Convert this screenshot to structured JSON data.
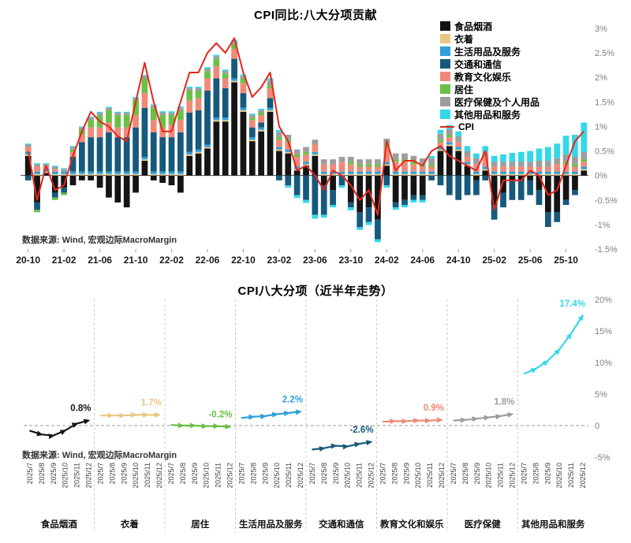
{
  "page": {
    "background": "#ffffff"
  },
  "chart_data": [
    {
      "type": "stacked-bar-line",
      "title": "CPI同比:八大分项贡献",
      "source": "数据来源: Wind, 宏观边际MacroMargin",
      "legend_position": "top-right",
      "grid": false,
      "ylim": [
        -1.5,
        3
      ],
      "y_ticks": [
        3,
        2.5,
        2,
        1.5,
        1,
        0.5,
        0,
        -0.5,
        -1,
        -1.5
      ],
      "y_tick_labels": [
        "3%",
        "2.5%",
        "2%",
        "1.5%",
        "1%",
        "0.5%",
        "0%",
        "-0.5%",
        "-1%",
        "-1.5%"
      ],
      "x_tick_every": 4,
      "months": [
        "20-10",
        "20-11",
        "20-12",
        "21-01",
        "21-02",
        "21-03",
        "21-04",
        "21-05",
        "21-06",
        "21-07",
        "21-08",
        "21-09",
        "21-10",
        "21-11",
        "21-12",
        "22-01",
        "22-02",
        "22-03",
        "22-04",
        "22-05",
        "22-06",
        "22-07",
        "22-08",
        "22-09",
        "22-10",
        "22-11",
        "22-12",
        "23-01",
        "23-02",
        "23-03",
        "23-04",
        "23-05",
        "23-06",
        "23-07",
        "23-08",
        "23-09",
        "23-10",
        "23-11",
        "23-12",
        "24-01",
        "24-02",
        "24-03",
        "24-04",
        "24-05",
        "24-06",
        "24-07",
        "24-08",
        "24-09",
        "24-10",
        "24-11",
        "24-12",
        "25-01",
        "25-02",
        "25-03",
        "25-04",
        "25-05",
        "25-06",
        "25-07",
        "25-08",
        "25-09",
        "25-10",
        "25-11",
        "25-12"
      ],
      "series": [
        {
          "name": "食品烟酒",
          "color": "#141414",
          "values": [
            0.4,
            -0.55,
            0.05,
            -0.35,
            -0.25,
            -0.2,
            -0.1,
            -0.1,
            -0.25,
            -0.45,
            -0.55,
            -0.65,
            -0.35,
            0.3,
            -0.1,
            -0.15,
            -0.2,
            -0.35,
            0.4,
            0.45,
            0.55,
            1.1,
            1.1,
            1.9,
            1.3,
            0.7,
            0.9,
            1.3,
            0.5,
            0.45,
            0.1,
            0.2,
            0.4,
            -0.2,
            -0.3,
            0.0,
            -0.55,
            -0.75,
            -0.65,
            -0.9,
            0.2,
            -0.55,
            -0.5,
            -0.4,
            -0.4,
            0.0,
            0.5,
            0.6,
            0.5,
            0.2,
            -0.1,
            0.1,
            -0.6,
            -0.35,
            -0.1,
            -0.1,
            -0.1,
            -0.3,
            -0.75,
            -0.75,
            -0.5,
            -0.3,
            0.1
          ]
        },
        {
          "name": "衣着",
          "color": "#e9c783",
          "values": [
            0.03,
            0.03,
            0.03,
            0.03,
            0.03,
            0.03,
            0.03,
            0.03,
            0.03,
            0.03,
            0.03,
            0.03,
            0.03,
            0.03,
            0.03,
            0.03,
            0.03,
            0.03,
            0.03,
            0.03,
            0.03,
            0.03,
            0.03,
            0.03,
            0.03,
            0.03,
            0.03,
            0.03,
            0.03,
            0.03,
            0.03,
            0.03,
            0.03,
            0.03,
            0.03,
            0.03,
            0.03,
            0.03,
            0.03,
            0.03,
            0.03,
            0.03,
            0.03,
            0.03,
            0.03,
            0.03,
            0.03,
            0.03,
            0.03,
            0.03,
            0.03,
            0.03,
            0.03,
            0.03,
            0.03,
            0.03,
            0.03,
            0.03,
            0.03,
            0.03,
            0.03,
            0.03,
            0.03
          ]
        },
        {
          "name": "生活用品及服务",
          "color": "#2e9fd9",
          "values": [
            0.05,
            0.05,
            0.05,
            0.05,
            0.05,
            0.05,
            0.05,
            0.05,
            0.05,
            0.05,
            0.05,
            0.05,
            0.05,
            0.05,
            0.05,
            0.05,
            0.05,
            0.05,
            0.05,
            0.05,
            0.05,
            0.05,
            0.05,
            0.05,
            0.05,
            0.05,
            0.05,
            0.05,
            0.05,
            0.05,
            0.05,
            0.05,
            0.05,
            0.05,
            0.05,
            0.05,
            0.05,
            0.05,
            0.05,
            0.05,
            0.05,
            0.05,
            0.05,
            0.05,
            0.05,
            0.05,
            0.05,
            0.05,
            0.05,
            0.05,
            0.05,
            0.05,
            0.05,
            0.05,
            0.05,
            0.05,
            0.05,
            0.05,
            0.05,
            0.05,
            0.05,
            0.05,
            0.05
          ]
        },
        {
          "name": "交通和通信",
          "color": "#16597c",
          "values": [
            -0.1,
            -0.15,
            0.0,
            -0.1,
            -0.1,
            0.3,
            0.6,
            0.7,
            0.7,
            0.8,
            0.7,
            0.7,
            0.9,
            1.0,
            0.8,
            0.7,
            0.7,
            0.8,
            0.8,
            0.8,
            1.1,
            0.8,
            0.6,
            0.4,
            0.3,
            0.2,
            0.1,
            0.2,
            -0.1,
            -0.2,
            -0.4,
            -0.5,
            -0.8,
            -0.6,
            -0.3,
            -0.2,
            -0.1,
            -0.3,
            -0.3,
            -0.4,
            -0.2,
            -0.1,
            -0.1,
            -0.1,
            -0.1,
            -0.1,
            -0.2,
            -0.4,
            -0.5,
            -0.4,
            -0.3,
            -0.1,
            -0.3,
            -0.3,
            -0.4,
            -0.4,
            -0.3,
            -0.3,
            -0.3,
            -0.2,
            -0.1,
            -0.1,
            0.0
          ]
        },
        {
          "name": "教育文化娱乐",
          "color": "#ef8a78",
          "values": [
            0.1,
            0.1,
            0.05,
            0.05,
            0.0,
            0.1,
            0.15,
            0.2,
            0.2,
            0.2,
            0.2,
            0.2,
            0.25,
            0.3,
            0.25,
            0.2,
            0.25,
            0.25,
            0.25,
            0.25,
            0.25,
            0.25,
            0.2,
            0.2,
            0.2,
            0.15,
            0.15,
            0.2,
            0.15,
            0.15,
            0.2,
            0.15,
            0.15,
            0.15,
            0.15,
            0.2,
            0.15,
            0.1,
            0.1,
            0.1,
            0.3,
            0.2,
            0.2,
            0.15,
            0.1,
            0.1,
            0.1,
            0.1,
            0.1,
            0.1,
            0.15,
            0.2,
            0.1,
            0.1,
            0.1,
            0.1,
            0.1,
            0.1,
            0.1,
            0.15,
            0.15,
            0.1,
            0.1
          ]
        },
        {
          "name": "居住",
          "color": "#6abf45",
          "values": [
            0.0,
            -0.05,
            0.0,
            -0.05,
            -0.05,
            0.05,
            0.1,
            0.15,
            0.25,
            0.25,
            0.25,
            0.25,
            0.3,
            0.3,
            0.25,
            0.25,
            0.2,
            0.2,
            0.2,
            0.15,
            0.15,
            0.15,
            0.1,
            0.1,
            0.1,
            0.05,
            0.05,
            0.05,
            0.05,
            0.05,
            0.05,
            0.05,
            0.0,
            0.0,
            0.0,
            0.0,
            0.05,
            0.05,
            0.05,
            0.05,
            0.05,
            0.05,
            0.05,
            0.05,
            0.05,
            0.05,
            0.05,
            0.05,
            0.0,
            0.0,
            0.0,
            0.0,
            0.0,
            0.0,
            0.0,
            0.0,
            0.0,
            0.0,
            0.0,
            0.0,
            0.05,
            0.05,
            0.05
          ]
        },
        {
          "name": "医疗保健及个人用品",
          "color": "#9d9d9d",
          "values": [
            0.05,
            0.05,
            0.05,
            0.05,
            0.05,
            0.05,
            0.05,
            0.05,
            0.05,
            0.05,
            0.05,
            0.05,
            0.05,
            0.05,
            0.05,
            0.05,
            0.05,
            0.05,
            0.05,
            0.05,
            0.05,
            0.05,
            0.05,
            0.05,
            0.05,
            0.05,
            0.05,
            0.1,
            0.1,
            0.1,
            0.1,
            0.1,
            0.1,
            0.1,
            0.1,
            0.1,
            0.1,
            0.1,
            0.1,
            0.1,
            0.12,
            0.12,
            0.12,
            0.12,
            0.12,
            0.12,
            0.12,
            0.12,
            0.12,
            0.12,
            0.12,
            0.1,
            0.1,
            0.1,
            0.1,
            0.1,
            0.1,
            0.12,
            0.12,
            0.12,
            0.15,
            0.15,
            0.15
          ]
        },
        {
          "name": "其他用品和服务",
          "color": "#33d8e8",
          "values": [
            0.02,
            0.02,
            0.02,
            0.02,
            0.02,
            0.02,
            0.02,
            0.02,
            0.02,
            0.02,
            0.02,
            0.02,
            0.02,
            0.02,
            0.02,
            0.03,
            0.03,
            0.03,
            0.03,
            0.03,
            0.03,
            0.03,
            0.03,
            0.03,
            0.03,
            0.03,
            0.03,
            0.05,
            0.05,
            -0.05,
            -0.06,
            -0.06,
            -0.08,
            -0.06,
            -0.05,
            -0.05,
            -0.06,
            -0.06,
            -0.06,
            -0.06,
            -0.05,
            -0.05,
            -0.05,
            -0.05,
            -0.05,
            0.05,
            0.08,
            0.08,
            0.1,
            0.1,
            0.1,
            0.12,
            0.12,
            0.15,
            0.18,
            0.2,
            0.22,
            0.25,
            0.28,
            0.3,
            0.38,
            0.45,
            0.6
          ]
        }
      ],
      "line": {
        "name": "CPI",
        "color": "#e4261c",
        "values": [
          0.5,
          -0.5,
          0.2,
          -0.3,
          -0.2,
          0.4,
          0.9,
          1.3,
          1.1,
          1.0,
          0.8,
          0.7,
          1.5,
          2.3,
          1.5,
          0.9,
          0.9,
          1.5,
          2.1,
          2.1,
          2.5,
          2.7,
          2.5,
          2.8,
          2.1,
          1.6,
          1.8,
          2.1,
          1.0,
          0.7,
          0.1,
          0.2,
          0.0,
          -0.3,
          0.1,
          0.0,
          -0.2,
          -0.5,
          -0.3,
          -0.8,
          0.7,
          0.1,
          0.3,
          0.3,
          0.2,
          0.5,
          0.6,
          0.4,
          0.3,
          0.2,
          0.1,
          0.5,
          -0.7,
          -0.1,
          -0.1,
          -0.1,
          0.1,
          0.0,
          -0.4,
          -0.3,
          0.2,
          0.7,
          0.9
        ]
      }
    },
    {
      "type": "small-multiples-line",
      "title": "CPI八大分项（近半年走势）",
      "source": "数据来源: Wind, 宏观边际MacroMargin",
      "ylim": [
        -5,
        20
      ],
      "y_ticks": [
        20,
        15,
        10,
        5,
        0,
        -5
      ],
      "y_tick_labels": [
        "20%",
        "15%",
        "10%",
        "5%",
        "0",
        "-5%"
      ],
      "zero_line": "dashed",
      "x_labels": [
        "2025/7",
        "2025/8",
        "2025/9",
        "2025/10",
        "2025/11",
        "2025/12"
      ],
      "panels": [
        {
          "name": "食品烟酒",
          "color": "#141414",
          "end_label": "0.8%",
          "values": [
            -0.8,
            -1.4,
            -1.6,
            -0.8,
            0.3,
            0.8
          ]
        },
        {
          "name": "衣着",
          "color": "#e9c783",
          "end_label": "1.7%",
          "values": [
            1.6,
            1.6,
            1.6,
            1.7,
            1.7,
            1.7
          ]
        },
        {
          "name": "居住",
          "color": "#6abf45",
          "end_label": "-0.2%",
          "values": [
            0.1,
            0.0,
            0.0,
            -0.1,
            -0.1,
            -0.2
          ]
        },
        {
          "name": "生活用品及服务",
          "color": "#2e9fd9",
          "end_label": "2.2%",
          "values": [
            1.2,
            1.4,
            1.5,
            1.8,
            2.0,
            2.2
          ]
        },
        {
          "name": "交通和通信",
          "color": "#16597c",
          "end_label": "-2.6%",
          "values": [
            -3.8,
            -3.6,
            -3.2,
            -3.3,
            -2.9,
            -2.6
          ]
        },
        {
          "name": "教育文化和娱乐",
          "color": "#ef8a78",
          "end_label": "0.9%",
          "values": [
            0.6,
            0.7,
            0.7,
            0.8,
            0.8,
            0.9
          ]
        },
        {
          "name": "医疗保健",
          "color": "#9d9d9d",
          "end_label": "1.8%",
          "values": [
            0.8,
            0.9,
            1.1,
            1.3,
            1.5,
            1.8
          ]
        },
        {
          "name": "其他用品和服务",
          "color": "#33d8e8",
          "end_label": "17.4%",
          "values": [
            8.2,
            9.0,
            10.2,
            12.0,
            14.5,
            17.4
          ]
        }
      ]
    }
  ]
}
